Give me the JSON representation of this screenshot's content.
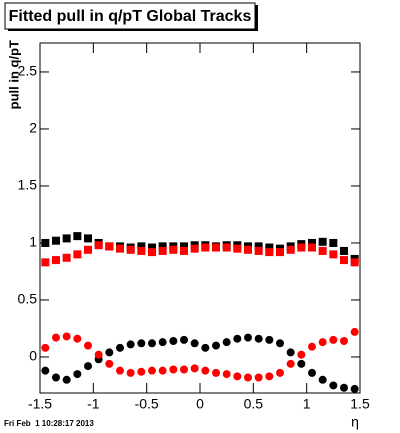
{
  "chart_data": {
    "type": "scatter",
    "title": "Fitted pull in q/pT  Global Tracks",
    "y_label": "pull in q/pT",
    "x_label": "η",
    "timestamp": "Fri Feb  1 10:28:17 2013",
    "x": [
      -1.45,
      -1.35,
      -1.25,
      -1.15,
      -1.05,
      -0.95,
      -0.85,
      -0.75,
      -0.65,
      -0.55,
      -0.45,
      -0.35,
      -0.25,
      -0.15,
      -0.05,
      0.05,
      0.15,
      0.25,
      0.35,
      0.45,
      0.55,
      0.65,
      0.75,
      0.85,
      0.95,
      1.05,
      1.15,
      1.25,
      1.35,
      1.45
    ],
    "series": [
      {
        "color": "#000000",
        "marker": "square",
        "values": [
          1.0,
          1.02,
          1.04,
          1.06,
          1.04,
          1.0,
          0.97,
          0.97,
          0.96,
          0.97,
          0.96,
          0.97,
          0.97,
          0.97,
          0.98,
          0.98,
          0.97,
          0.98,
          0.98,
          0.97,
          0.97,
          0.96,
          0.95,
          0.97,
          0.99,
          1.0,
          1.01,
          1.0,
          0.93,
          0.86
        ]
      },
      {
        "color": "#ff0000",
        "marker": "square",
        "values": [
          0.83,
          0.85,
          0.87,
          0.9,
          0.94,
          0.98,
          0.97,
          0.95,
          0.94,
          0.93,
          0.92,
          0.93,
          0.94,
          0.93,
          0.95,
          0.96,
          0.96,
          0.96,
          0.95,
          0.94,
          0.93,
          0.92,
          0.92,
          0.94,
          0.96,
          0.96,
          0.93,
          0.9,
          0.85,
          0.83
        ]
      },
      {
        "color": "#000000",
        "marker": "circle",
        "values": [
          -0.12,
          -0.18,
          -0.2,
          -0.15,
          -0.08,
          -0.02,
          0.04,
          0.08,
          0.11,
          0.12,
          0.12,
          0.13,
          0.14,
          0.15,
          0.12,
          0.08,
          0.1,
          0.13,
          0.16,
          0.17,
          0.16,
          0.15,
          0.12,
          0.04,
          -0.06,
          -0.14,
          -0.2,
          -0.25,
          -0.27,
          -0.28
        ]
      },
      {
        "color": "#ff0000",
        "marker": "circle",
        "values": [
          0.08,
          0.17,
          0.18,
          0.16,
          0.1,
          0.02,
          -0.06,
          -0.12,
          -0.14,
          -0.13,
          -0.12,
          -0.12,
          -0.11,
          -0.11,
          -0.1,
          -0.12,
          -0.14,
          -0.15,
          -0.17,
          -0.18,
          -0.18,
          -0.17,
          -0.14,
          -0.06,
          0.02,
          0.09,
          0.13,
          0.15,
          0.14,
          0.22
        ]
      }
    ],
    "xlim": [
      -1.5,
      1.5
    ],
    "ylim": [
      -0.316,
      2.754
    ],
    "xticks": [
      -1.5,
      -1,
      -0.5,
      0,
      0.5,
      1,
      1.5
    ],
    "yticks": [
      0,
      0.5,
      1,
      1.5,
      2,
      2.5
    ]
  }
}
